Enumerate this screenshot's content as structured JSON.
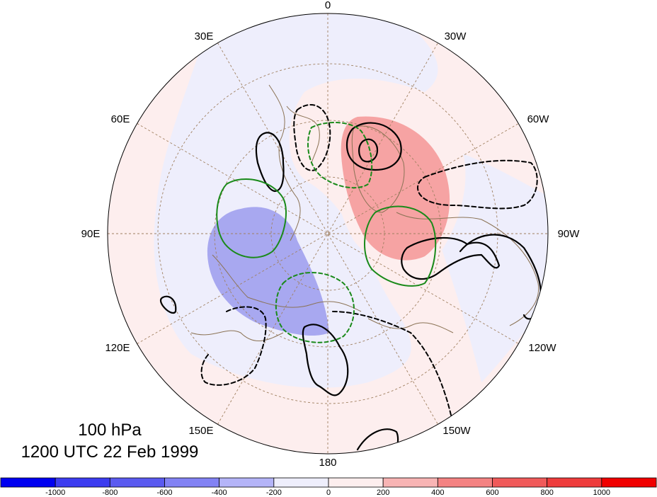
{
  "map": {
    "projection": "north polar stereographic",
    "longitude_labels": [
      "0",
      "30W",
      "60W",
      "90W",
      "120W",
      "150W",
      "180",
      "150E",
      "120E",
      "90E",
      "60E",
      "30E"
    ],
    "panel_text": {
      "level": "100 hPa",
      "time": "1200 UTC 22 Feb 1999"
    },
    "colors": {
      "negative_shading": "#a8a8f0",
      "positive_shading": "#f6a3a3",
      "light_negative": "#eeeefc",
      "light_positive": "#fdeeee",
      "coastline": "#8b7355",
      "grid": "#a08060",
      "contour_black": "#000000",
      "contour_green": "#1a8a1a"
    },
    "contour_styles": [
      "solid black",
      "dashed black",
      "solid green",
      "dashed green"
    ]
  },
  "colorbar": {
    "labels": [
      "-1000",
      "-800",
      "-600",
      "-400",
      "-200",
      "0",
      "200",
      "400",
      "600",
      "800",
      "1000"
    ],
    "colors": [
      "#0000f0",
      "#3c3cf0",
      "#5a5af0",
      "#8282f4",
      "#b4b4f8",
      "#eeeefc",
      "#fdeeee",
      "#f8b4b4",
      "#f48282",
      "#f05a5a",
      "#ee3c3c",
      "#f00000"
    ]
  }
}
